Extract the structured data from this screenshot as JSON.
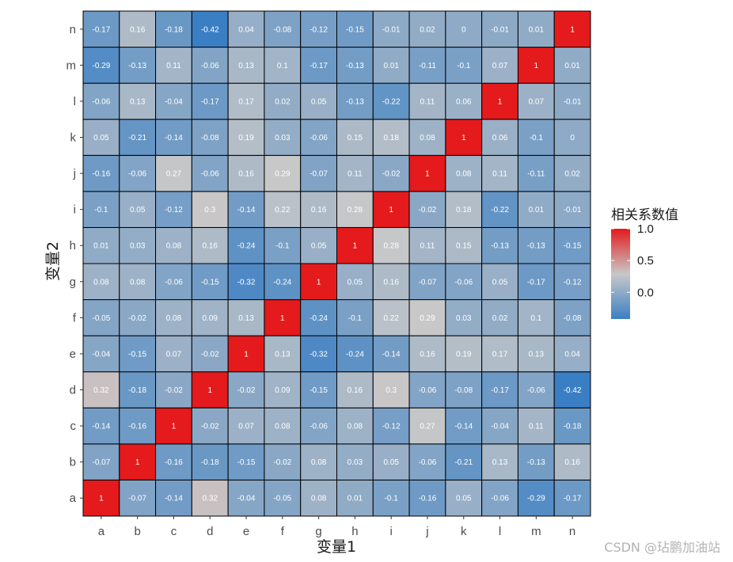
{
  "chart_data": {
    "type": "heatmap",
    "xlabel": "变量1",
    "ylabel": "变量2",
    "x_categories": [
      "a",
      "b",
      "c",
      "d",
      "e",
      "f",
      "g",
      "h",
      "i",
      "j",
      "k",
      "l",
      "m",
      "n"
    ],
    "y_categories": [
      "a",
      "b",
      "c",
      "d",
      "e",
      "f",
      "g",
      "h",
      "i",
      "j",
      "k",
      "l",
      "m",
      "n"
    ],
    "values": [
      [
        1,
        -0.07,
        -0.14,
        0.32,
        -0.04,
        -0.05,
        0.08,
        0.01,
        -0.1,
        -0.16,
        0.05,
        -0.06,
        -0.29,
        -0.17
      ],
      [
        -0.07,
        1,
        -0.16,
        -0.18,
        -0.15,
        -0.02,
        0.08,
        0.03,
        0.05,
        -0.06,
        -0.21,
        0.13,
        -0.13,
        0.16
      ],
      [
        -0.14,
        -0.16,
        1,
        -0.02,
        0.07,
        0.08,
        -0.06,
        0.08,
        -0.12,
        0.27,
        -0.14,
        -0.04,
        0.11,
        -0.18
      ],
      [
        0.32,
        -0.18,
        -0.02,
        1,
        -0.02,
        0.09,
        -0.15,
        0.16,
        0.3,
        -0.06,
        -0.08,
        -0.17,
        -0.06,
        -0.42
      ],
      [
        -0.04,
        -0.15,
        0.07,
        -0.02,
        1,
        0.13,
        -0.32,
        -0.24,
        -0.14,
        0.16,
        0.19,
        0.17,
        0.13,
        0.04
      ],
      [
        -0.05,
        -0.02,
        0.08,
        0.09,
        0.13,
        1,
        -0.24,
        -0.1,
        0.22,
        0.29,
        0.03,
        0.02,
        0.1,
        -0.08
      ],
      [
        0.08,
        0.08,
        -0.06,
        -0.15,
        -0.32,
        -0.24,
        1,
        0.05,
        0.16,
        -0.07,
        -0.06,
        0.05,
        -0.17,
        -0.12
      ],
      [
        0.01,
        0.03,
        0.08,
        0.16,
        -0.24,
        -0.1,
        0.05,
        1,
        0.28,
        0.11,
        0.15,
        -0.13,
        -0.13,
        -0.15
      ],
      [
        -0.1,
        0.05,
        -0.12,
        0.3,
        -0.14,
        0.22,
        0.16,
        0.28,
        1,
        -0.02,
        0.18,
        -0.22,
        0.01,
        -0.01
      ],
      [
        -0.16,
        -0.06,
        0.27,
        -0.06,
        0.16,
        0.29,
        -0.07,
        0.11,
        -0.02,
        1,
        0.08,
        0.11,
        -0.11,
        0.02
      ],
      [
        0.05,
        -0.21,
        -0.14,
        -0.08,
        0.19,
        0.03,
        -0.06,
        0.15,
        0.18,
        0.08,
        1,
        0.06,
        -0.1,
        0
      ],
      [
        -0.06,
        0.13,
        -0.04,
        -0.17,
        0.17,
        0.02,
        0.05,
        -0.13,
        -0.22,
        0.11,
        0.06,
        1,
        0.07,
        -0.01
      ],
      [
        -0.29,
        -0.13,
        0.11,
        -0.06,
        0.13,
        0.1,
        -0.17,
        -0.13,
        0.01,
        -0.11,
        -0.1,
        0.07,
        1,
        0.01
      ],
      [
        -0.17,
        0.16,
        -0.18,
        -0.42,
        0.04,
        -0.08,
        -0.12,
        -0.15,
        -0.01,
        0.02,
        0,
        -0.01,
        0.01,
        1
      ]
    ],
    "value_range": [
      -0.42,
      1
    ],
    "colors": {
      "low": "#3a7fc4",
      "mid": "#c8c8c8",
      "high": "#e41a1c",
      "cell_border": "#000000"
    },
    "legend": {
      "title": "相关系数值",
      "ticks": [
        1.0,
        0.5,
        0.0
      ],
      "tick_labels": [
        "1.0",
        "0.5",
        "0.0"
      ],
      "placement": "right"
    },
    "grid": false
  },
  "watermark": "CSDN @玷鹏加油站"
}
